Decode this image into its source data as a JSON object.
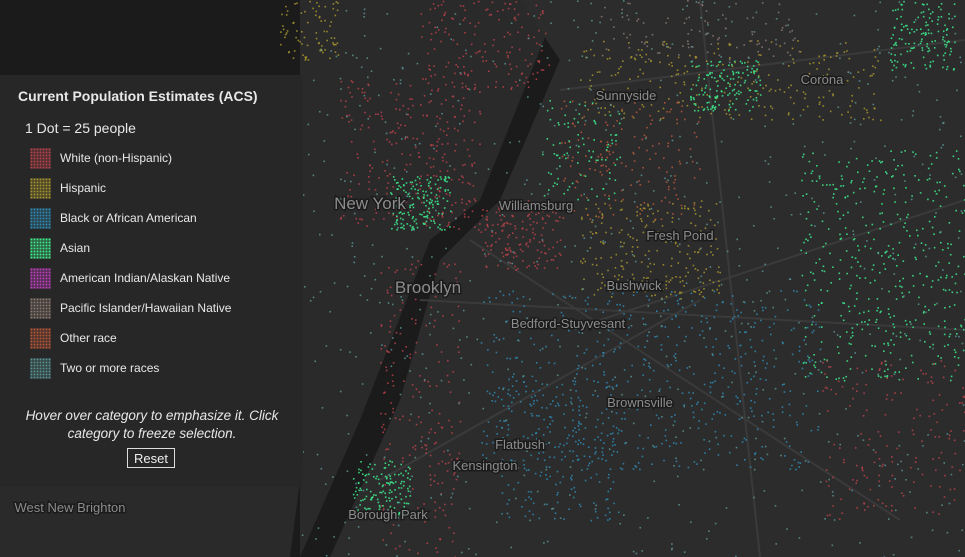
{
  "legend": {
    "title": "Current Population Estimates (ACS)",
    "scale": "1 Dot = 25 people",
    "items": [
      {
        "label": "White (non-Hispanic)",
        "color": "#b8434a"
      },
      {
        "label": "Hispanic",
        "color": "#a8962e"
      },
      {
        "label": "Black or African American",
        "color": "#2f8cb5"
      },
      {
        "label": "Asian",
        "color": "#3ef08e"
      },
      {
        "label": "American Indian/Alaskan Native",
        "color": "#c040c0"
      },
      {
        "label": "Pacific Islander/Hawaiian Native",
        "color": "#8c7a72"
      },
      {
        "label": "Other race",
        "color": "#b8583a"
      },
      {
        "label": "Two or more races",
        "color": "#5a9494"
      }
    ],
    "instructions": "Hover over category to emphasize it. Click category to freeze selection.",
    "reset": "Reset"
  },
  "map": {
    "labels": [
      "New York",
      "Williamsburg",
      "Sunnyside",
      "Corona",
      "Fresh Pond",
      "Bushwick",
      "Brooklyn",
      "Bedford-Stuyvesant",
      "Brownsville",
      "Flatbush",
      "Kensington",
      "Borough Park",
      "West New Brighton"
    ]
  }
}
